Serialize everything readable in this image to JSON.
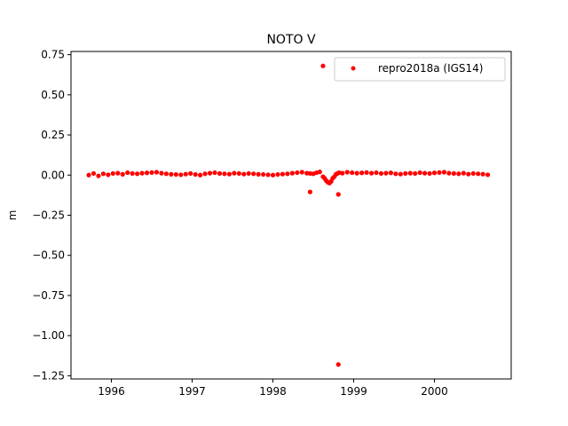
{
  "chart_data": {
    "type": "scatter",
    "title": "NOTO V",
    "xlabel": "",
    "ylabel": "m",
    "xlim": [
      1995.5,
      2000.95
    ],
    "ylim": [
      -1.27,
      0.77
    ],
    "xticks": [
      1996,
      1997,
      1998,
      1999,
      2000
    ],
    "xtick_labels": [
      "1996",
      "1997",
      "1998",
      "1999",
      "2000"
    ],
    "yticks": [
      0.75,
      0.5,
      0.25,
      0.0,
      -0.25,
      -0.5,
      -0.75,
      -1.0,
      -1.25
    ],
    "ytick_labels": [
      "0.75",
      "0.50",
      "0.25",
      "0.00",
      "−0.25",
      "−0.50",
      "−0.75",
      "−1.00",
      "−1.25"
    ],
    "grid": false,
    "legend_position": "top-right",
    "series": [
      {
        "name": "repro2018a (IGS14)",
        "color": "#ff0000",
        "marker": "circle",
        "x": [
          1995.72,
          1995.78,
          1995.84,
          1995.9,
          1995.96,
          1996.02,
          1996.08,
          1996.14,
          1996.2,
          1996.26,
          1996.32,
          1996.38,
          1996.44,
          1996.5,
          1996.56,
          1996.62,
          1996.68,
          1996.74,
          1996.8,
          1996.86,
          1996.92,
          1996.98,
          1997.04,
          1997.1,
          1997.16,
          1997.22,
          1997.28,
          1997.34,
          1997.4,
          1997.46,
          1997.52,
          1997.58,
          1997.64,
          1997.7,
          1997.76,
          1997.82,
          1997.88,
          1997.94,
          1998.0,
          1998.06,
          1998.12,
          1998.18,
          1998.24,
          1998.3,
          1998.36,
          1998.42,
          1998.46,
          1998.5,
          1998.54,
          1998.58,
          1998.62,
          1998.64,
          1998.66,
          1998.68,
          1998.7,
          1998.72,
          1998.74,
          1998.76,
          1998.78,
          1998.8,
          1998.82,
          1998.86,
          1998.92,
          1998.98,
          1999.04,
          1999.1,
          1999.16,
          1999.22,
          1999.28,
          1999.34,
          1999.4,
          1999.46,
          1999.52,
          1999.58,
          1999.64,
          1999.7,
          1999.76,
          1999.82,
          1999.88,
          1999.94,
          2000.0,
          2000.06,
          2000.12,
          2000.18,
          2000.24,
          2000.3,
          2000.36,
          2000.42,
          2000.48,
          2000.54,
          2000.6,
          2000.66,
          1998.46,
          1998.62,
          1998.81,
          1998.81
        ],
        "y": [
          0.0,
          0.01,
          -0.005,
          0.008,
          0.002,
          0.01,
          0.012,
          0.005,
          0.015,
          0.01,
          0.008,
          0.012,
          0.014,
          0.016,
          0.018,
          0.012,
          0.008,
          0.005,
          0.004,
          0.002,
          0.006,
          0.01,
          0.004,
          0.0,
          0.008,
          0.012,
          0.015,
          0.01,
          0.008,
          0.006,
          0.012,
          0.01,
          0.006,
          0.01,
          0.008,
          0.005,
          0.004,
          0.002,
          0.0,
          0.004,
          0.006,
          0.008,
          0.012,
          0.015,
          0.018,
          0.012,
          0.01,
          0.008,
          0.015,
          0.02,
          -0.01,
          -0.02,
          -0.035,
          -0.045,
          -0.05,
          -0.04,
          -0.02,
          -0.01,
          0.005,
          0.01,
          0.015,
          0.012,
          0.018,
          0.015,
          0.012,
          0.014,
          0.016,
          0.012,
          0.015,
          0.01,
          0.012,
          0.014,
          0.008,
          0.006,
          0.01,
          0.012,
          0.01,
          0.015,
          0.012,
          0.01,
          0.014,
          0.016,
          0.018,
          0.012,
          0.01,
          0.008,
          0.012,
          0.006,
          0.01,
          0.008,
          0.006,
          0.002,
          -0.105,
          0.68,
          -1.18,
          -0.12
        ]
      }
    ]
  }
}
